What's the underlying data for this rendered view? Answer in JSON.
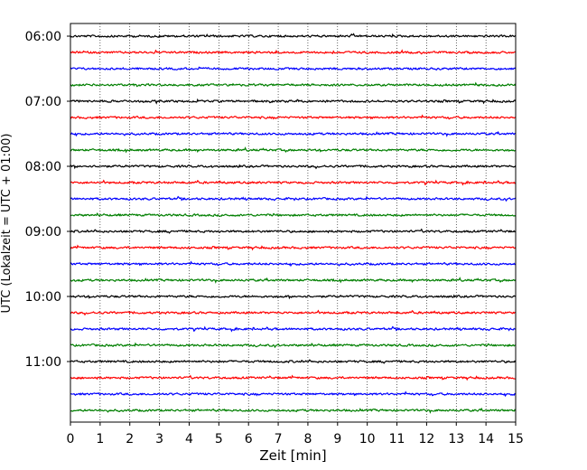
{
  "chart_data": {
    "type": "line",
    "title": "",
    "xlabel": "Zeit  [min]",
    "ylabel": "UTC (Lokalzeit = UTC + 01:00)",
    "xlim": [
      0,
      15
    ],
    "x_ticks": [
      "0",
      "1",
      "2",
      "3",
      "4",
      "5",
      "6",
      "7",
      "8",
      "9",
      "10",
      "11",
      "12",
      "13",
      "14",
      "15"
    ],
    "y_ticks": [
      "06:00",
      "07:00",
      "08:00",
      "09:00",
      "10:00",
      "11:00"
    ],
    "grid": "vertical dotted lines at each minute",
    "trace_interval_min": 15,
    "trace_colors": [
      "#000000",
      "#ff0000",
      "#0000ff",
      "#007f00"
    ],
    "traces": [
      "06:00",
      "06:15",
      "06:30",
      "06:45",
      "07:00",
      "07:15",
      "07:30",
      "07:45",
      "08:00",
      "08:15",
      "08:30",
      "08:45",
      "09:00",
      "09:15",
      "09:30",
      "09:45",
      "10:00",
      "10:15",
      "10:30",
      "10:45",
      "11:00",
      "11:15",
      "11:30",
      "11:45"
    ],
    "series_description": "seismogram traces, one per 15-minute window"
  }
}
